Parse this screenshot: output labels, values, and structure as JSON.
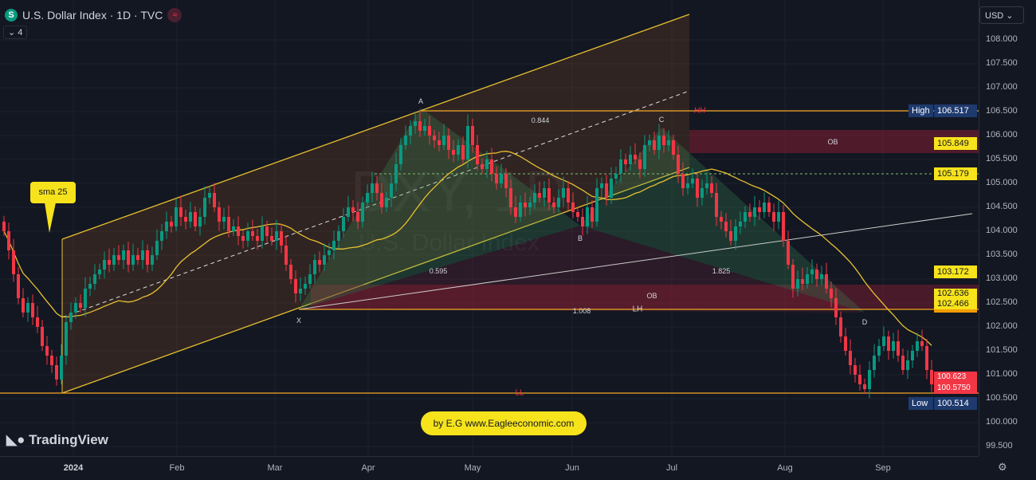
{
  "header": {
    "symbol_icon": "S",
    "title": "U.S. Dollar Index · 1D · TVC",
    "indicator_icon": "≈",
    "legend_toggle": "⌄ 4",
    "currency": "USD ⌄"
  },
  "watermark": {
    "line1": "DXY, 1D",
    "line2": "U.S. Dollar Index"
  },
  "annotations": {
    "sma_callout": "sma 25",
    "A": "A",
    "B": "B",
    "C": "C",
    "D": "D",
    "X": "X",
    "HH": "HH",
    "LH": "LH",
    "LL": "LL",
    "OB_upper": "OB",
    "OB_lower": "OB",
    "r_0844": "0.844",
    "r_0595": "0.595",
    "r_1825": "1.825",
    "r_1008": "1.008",
    "credit": "by E.G www.Eagleeconomic.com",
    "brand": "TradingView"
  },
  "colors": {
    "up": "#089981",
    "down": "#f23645",
    "sma": "#f7e31c",
    "bg": "#131722"
  },
  "price_badges": {
    "high_label": "High",
    "high": "106.517",
    "ob_top": "105.849",
    "green_line": "105.179",
    "sma": "103.172",
    "ob_low_top": "102.636",
    "ob_low": "102.466",
    "low_label": "Low",
    "low": "100.514",
    "last_top": "100.623",
    "last_bot": "100.5750"
  },
  "chart_data": {
    "type": "candlestick",
    "title": "U.S. Dollar Index · 1D · TVC",
    "y_ticks": [
      "108.000",
      "107.500",
      "107.000",
      "106.500",
      "106.000",
      "105.500",
      "105.000",
      "104.500",
      "104.000",
      "103.500",
      "103.000",
      "102.500",
      "102.000",
      "101.500",
      "101.000",
      "100.500",
      "100.000",
      "99.500"
    ],
    "ylim": [
      99.3,
      108.7
    ],
    "x_ticks": [
      "2024",
      "Feb",
      "Mar",
      "Apr",
      "May",
      "Jun",
      "Jul",
      "Aug",
      "Sep"
    ],
    "indicator": "sma 25",
    "closes": [
      104.0,
      103.6,
      103.1,
      102.6,
      102.3,
      102.5,
      102.2,
      102.0,
      101.6,
      101.4,
      101.2,
      100.9,
      101.4,
      102.1,
      102.3,
      102.5,
      102.4,
      102.8,
      102.9,
      103.1,
      103.2,
      103.4,
      103.3,
      103.5,
      103.4,
      103.6,
      103.3,
      103.5,
      103.4,
      103.6,
      103.3,
      103.5,
      103.8,
      104.0,
      104.2,
      104.1,
      104.5,
      104.3,
      104.2,
      104.4,
      104.1,
      104.3,
      104.7,
      104.8,
      104.5,
      104.2,
      104.3,
      104.0,
      104.1,
      103.9,
      103.8,
      104.0,
      103.9,
      103.8,
      104.1,
      103.9,
      103.8,
      104.0,
      103.7,
      103.3,
      103.0,
      102.7,
      102.8,
      102.9,
      103.1,
      103.4,
      103.3,
      103.5,
      103.6,
      103.8,
      104.0,
      104.3,
      104.5,
      104.4,
      104.2,
      104.6,
      104.8,
      105.0,
      104.8,
      104.5,
      104.7,
      105.0,
      105.4,
      105.8,
      106.0,
      106.2,
      106.3,
      106.1,
      106.2,
      106.0,
      105.9,
      105.8,
      106.0,
      105.7,
      105.6,
      105.8,
      105.5,
      106.2,
      105.8,
      105.4,
      105.3,
      105.5,
      105.2,
      105.0,
      105.2,
      104.9,
      104.5,
      104.3,
      104.6,
      104.5,
      104.6,
      104.8,
      104.7,
      104.9,
      104.6,
      104.5,
      104.7,
      104.9,
      104.6,
      104.4,
      104.3,
      104.1,
      104.5,
      104.2,
      104.9,
      105.0,
      104.7,
      105.1,
      105.2,
      105.5,
      105.4,
      105.6,
      105.5,
      105.3,
      105.8,
      105.9,
      105.7,
      106.0,
      105.8,
      105.9,
      105.6,
      105.2,
      104.9,
      105.0,
      105.1,
      104.7,
      104.9,
      105.0,
      104.8,
      104.3,
      104.2,
      104.0,
      103.8,
      104.1,
      104.2,
      104.4,
      104.3,
      104.5,
      104.4,
      104.6,
      104.4,
      104.2,
      104.4,
      103.8,
      103.3,
      102.8,
      103.0,
      102.9,
      103.1,
      103.2,
      103.0,
      103.1,
      102.8,
      102.6,
      102.2,
      101.8,
      101.5,
      101.2,
      101.0,
      100.8,
      100.7,
      101.1,
      101.4,
      101.6,
      101.8,
      101.5,
      101.7,
      101.4,
      101.1,
      101.3,
      101.5,
      101.7,
      101.6,
      101.1,
      100.8
    ]
  }
}
